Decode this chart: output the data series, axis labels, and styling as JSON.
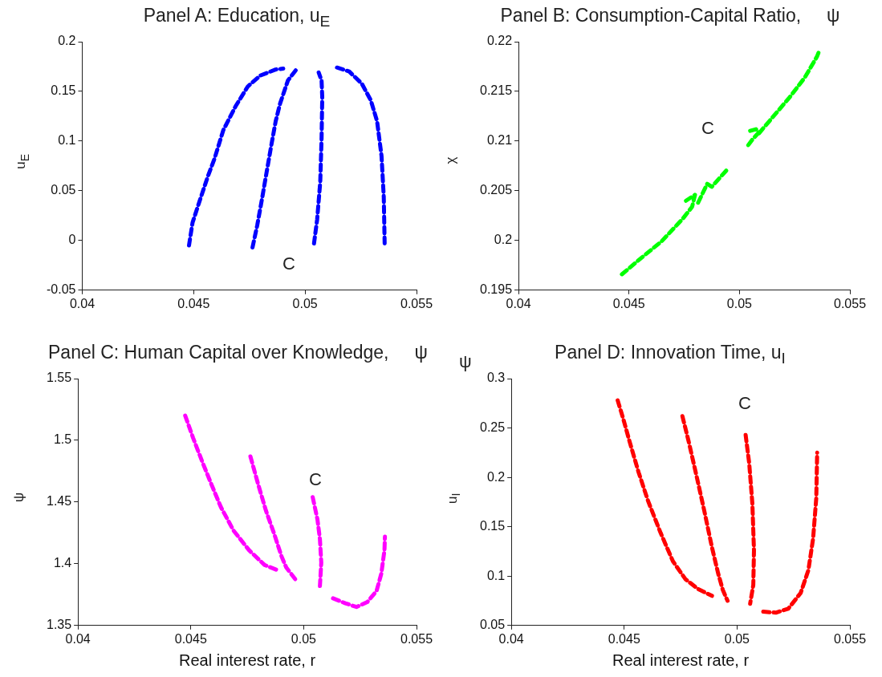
{
  "chart_data": [
    {
      "type": "line",
      "title": "Panel A: Education, u$_{E}$",
      "ylabel": "u$_{E}$",
      "xlim": [
        0.04,
        0.055
      ],
      "xticks": [
        0.04,
        0.045,
        0.05,
        0.055
      ],
      "ylim": [
        -0.05,
        0.2
      ],
      "yticks": [
        -0.05,
        0,
        0.05,
        0.1,
        0.15,
        0.2
      ],
      "grid": false,
      "legend": false,
      "marker": "none",
      "line_style": "dashed",
      "annotations": [
        "C"
      ],
      "series": [
        {
          "color": "#0000ff",
          "x": [
            0.04479,
            0.04495,
            0.0453,
            0.04566,
            0.04593,
            0.04633,
            0.04688,
            0.04743,
            0.04799,
            0.04868,
            0.04902
          ],
          "values": [
            -0.005,
            0.018,
            0.042,
            0.066,
            0.082,
            0.111,
            0.135,
            0.155,
            0.166,
            0.172,
            0.173
          ]
        },
        {
          "color": "#0000ff",
          "x": [
            0.04764,
            0.04785,
            0.04806,
            0.04826,
            0.04847,
            0.04868,
            0.04888,
            0.04923,
            0.04964
          ],
          "values": [
            -0.007,
            0.015,
            0.041,
            0.067,
            0.094,
            0.12,
            0.138,
            0.161,
            0.173
          ]
        },
        {
          "color": "#0000ff",
          "x": [
            0.0504,
            0.05054,
            0.05068,
            0.05074,
            0.05077,
            0.05074,
            0.05061
          ],
          "values": [
            -0.003,
            0.021,
            0.059,
            0.103,
            0.144,
            0.161,
            0.169
          ]
        },
        {
          "color": "#0000ff",
          "x": [
            0.05143,
            0.05198,
            0.05254,
            0.05295,
            0.05323,
            0.05343,
            0.05353,
            0.05357
          ],
          "values": [
            0.174,
            0.17,
            0.158,
            0.141,
            0.12,
            0.085,
            0.044,
            -0.003
          ]
        }
      ]
    },
    {
      "type": "line",
      "title": "Panel B: Consumption-Capital Ratio,     ψ",
      "ylabel": "χ",
      "xlim": [
        0.04,
        0.055
      ],
      "xticks": [
        0.04,
        0.045,
        0.05,
        0.055
      ],
      "ylim": [
        0.195,
        0.22
      ],
      "yticks": [
        0.195,
        0.2,
        0.205,
        0.21,
        0.215,
        0.22
      ],
      "grid": false,
      "legend": false,
      "marker": "none",
      "line_style": "dashed",
      "annotations": [
        "C"
      ],
      "series": [
        {
          "color": "#00ff00",
          "x": [
            0.04468,
            0.04564,
            0.04647,
            0.04744,
            0.04786,
            0.04799,
            0.04758
          ],
          "values": [
            0.1966,
            0.1984,
            0.1999,
            0.2022,
            0.2034,
            0.2046,
            0.204
          ]
        },
        {
          "color": "#00ff00",
          "x": [
            0.04813,
            0.04854,
            0.04875,
            0.04951
          ],
          "values": [
            0.2038,
            0.2057,
            0.2054,
            0.2073
          ]
        },
        {
          "color": "#00ff00",
          "x": [
            0.0504,
            0.0506,
            0.05089,
            0.05075,
            0.05044
          ],
          "values": [
            0.2096,
            0.2102,
            0.2109,
            0.2112,
            0.211
          ]
        },
        {
          "color": "#00ff00",
          "x": [
            0.05089,
            0.05158,
            0.05227,
            0.05296,
            0.05351,
            0.05358
          ],
          "values": [
            0.2108,
            0.2126,
            0.2144,
            0.2164,
            0.2185,
            0.2189
          ]
        }
      ]
    },
    {
      "type": "line",
      "title": "Panel C: Human Capital over Knowledge,     ψ",
      "xlabel": "Real interest rate, r",
      "ylabel": "ψ",
      "xlim": [
        0.04,
        0.055
      ],
      "xticks": [
        0.04,
        0.045,
        0.05,
        0.055
      ],
      "ylim": [
        1.35,
        1.55
      ],
      "yticks": [
        1.35,
        1.4,
        1.45,
        1.5,
        1.55
      ],
      "grid": false,
      "legend": false,
      "marker": "none",
      "line_style": "dashed",
      "annotations": [
        "C"
      ],
      "series": [
        {
          "color": "#ff00ff",
          "x": [
            0.04475,
            0.0451,
            0.0455,
            0.04592,
            0.04633,
            0.04689,
            0.04758,
            0.04827,
            0.04882
          ],
          "values": [
            1.52,
            1.502,
            1.483,
            1.464,
            1.446,
            1.427,
            1.411,
            1.399,
            1.395
          ]
        },
        {
          "color": "#ff00ff",
          "x": [
            0.04764,
            0.04799,
            0.04833,
            0.04868,
            0.04902,
            0.04923,
            0.04965
          ],
          "values": [
            1.487,
            1.464,
            1.443,
            1.425,
            1.406,
            1.397,
            1.387
          ]
        },
        {
          "color": "#ff00ff",
          "x": [
            0.0504,
            0.05061,
            0.05072,
            0.05078,
            0.05072
          ],
          "values": [
            1.454,
            1.436,
            1.42,
            1.401,
            1.382
          ]
        },
        {
          "color": "#ff00ff",
          "x": [
            0.0513,
            0.05185,
            0.05234,
            0.05282,
            0.05323,
            0.05344,
            0.05358,
            0.0536
          ],
          "values": [
            1.372,
            1.368,
            1.365,
            1.369,
            1.378,
            1.392,
            1.411,
            1.422
          ]
        }
      ]
    },
    {
      "type": "line",
      "title": "Panel D: Innovation Time, u$_{I}$",
      "xlabel": "Real interest rate, r",
      "ylabel": "u$_{I}$",
      "xlim": [
        0.04,
        0.055
      ],
      "xticks": [
        0.04,
        0.045,
        0.05,
        0.055
      ],
      "ylim": [
        0.05,
        0.3
      ],
      "yticks": [
        0.05,
        0.1,
        0.15,
        0.2,
        0.25,
        0.3
      ],
      "grid": false,
      "legend": false,
      "marker": "none",
      "line_style": "dashed",
      "annotations": [
        "ψ",
        "C"
      ],
      "series": [
        {
          "color": "#ff0000",
          "x": [
            0.04471,
            0.04495,
            0.04523,
            0.04564,
            0.04606,
            0.04661,
            0.04716,
            0.04771,
            0.04827,
            0.04889
          ],
          "values": [
            0.278,
            0.26,
            0.237,
            0.205,
            0.176,
            0.144,
            0.115,
            0.097,
            0.087,
            0.08
          ]
        },
        {
          "color": "#ff0000",
          "x": [
            0.04758,
            0.04785,
            0.0482,
            0.04854,
            0.04889,
            0.04916,
            0.04937,
            0.04958
          ],
          "values": [
            0.262,
            0.237,
            0.202,
            0.167,
            0.129,
            0.103,
            0.086,
            0.075
          ]
        },
        {
          "color": "#ff0000",
          "x": [
            0.05038,
            0.05054,
            0.05068,
            0.05075,
            0.05072,
            0.05058
          ],
          "values": [
            0.243,
            0.214,
            0.173,
            0.126,
            0.091,
            0.072
          ]
        },
        {
          "color": "#ff0000",
          "x": [
            0.05116,
            0.05172,
            0.05227,
            0.05282,
            0.05316,
            0.05337,
            0.05351,
            0.05355
          ],
          "values": [
            0.064,
            0.063,
            0.067,
            0.083,
            0.106,
            0.138,
            0.179,
            0.225
          ]
        }
      ]
    }
  ]
}
